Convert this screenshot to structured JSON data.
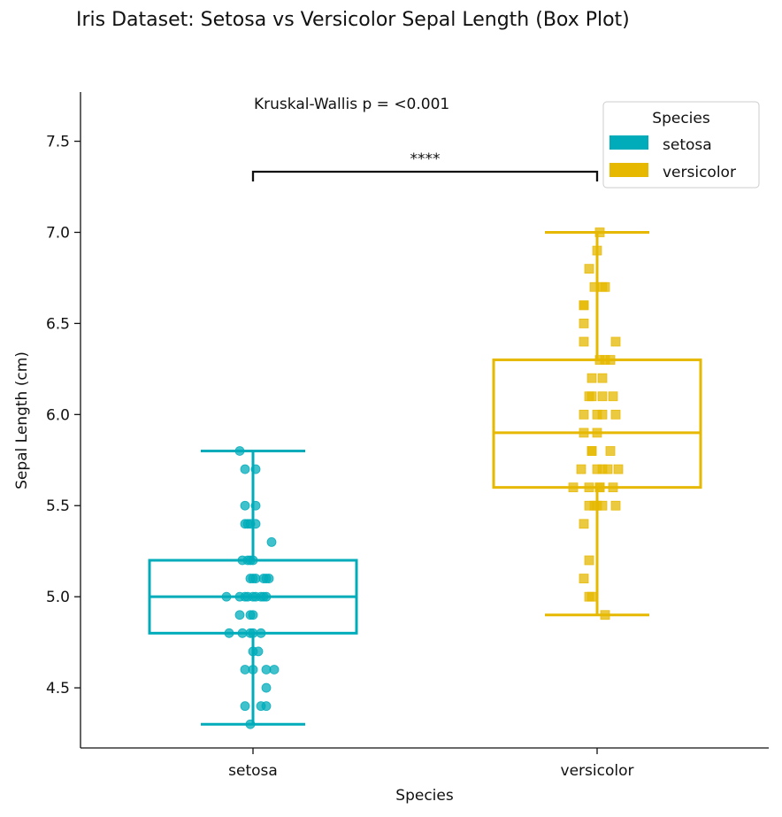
{
  "chart_data": {
    "type": "box",
    "title": "Iris Dataset: Setosa vs Versicolor Sepal Length (Box Plot)",
    "xlabel": "Species",
    "ylabel": "Sepal Length (cm)",
    "ylim": [
      4.17,
      7.77
    ],
    "yticks": [
      "4.5",
      "5.0",
      "5.5",
      "6.0",
      "6.5",
      "7.0",
      "7.5"
    ],
    "categories": [
      "setosa",
      "versicolor"
    ],
    "legend": {
      "title": "Species",
      "placement": "top-right"
    },
    "annotation": "Kruskal-Wallis p = <0.001",
    "significance": "****",
    "grid": false,
    "series": [
      {
        "name": "setosa",
        "color": "#00ACBA",
        "marker": "circle",
        "box": {
          "whislo": 4.3,
          "q1": 4.8,
          "median": 5.0,
          "q3": 5.2,
          "whishi": 5.8
        },
        "points": [
          [
            -0.05,
            5.8
          ],
          [
            -0.03,
            5.7
          ],
          [
            0.01,
            5.7
          ],
          [
            -0.03,
            5.5
          ],
          [
            0.01,
            5.5
          ],
          [
            -0.02,
            5.4
          ],
          [
            -0.01,
            5.4
          ],
          [
            -0.03,
            5.4
          ],
          [
            0.01,
            5.4
          ],
          [
            0.07,
            5.3
          ],
          [
            -0.04,
            5.2
          ],
          [
            -0.01,
            5.2
          ],
          [
            -0.02,
            5.2
          ],
          [
            0.0,
            5.2
          ],
          [
            -0.01,
            5.1
          ],
          [
            0.0,
            5.1
          ],
          [
            0.01,
            5.1
          ],
          [
            0.04,
            5.1
          ],
          [
            0.05,
            5.1
          ],
          [
            0.06,
            5.1
          ],
          [
            -0.1,
            5.0
          ],
          [
            -0.05,
            5.0
          ],
          [
            -0.03,
            5.0
          ],
          [
            -0.02,
            5.0
          ],
          [
            0.0,
            5.0
          ],
          [
            0.01,
            5.0
          ],
          [
            0.03,
            5.0
          ],
          [
            0.04,
            5.0
          ],
          [
            0.05,
            5.0
          ],
          [
            -0.05,
            4.9
          ],
          [
            -0.01,
            4.9
          ],
          [
            0.0,
            4.9
          ],
          [
            -0.09,
            4.8
          ],
          [
            -0.04,
            4.8
          ],
          [
            -0.01,
            4.8
          ],
          [
            0.0,
            4.8
          ],
          [
            0.03,
            4.8
          ],
          [
            0.0,
            4.7
          ],
          [
            0.02,
            4.7
          ],
          [
            -0.03,
            4.6
          ],
          [
            0.0,
            4.6
          ],
          [
            0.05,
            4.6
          ],
          [
            0.08,
            4.6
          ],
          [
            0.05,
            4.5
          ],
          [
            -0.03,
            4.4
          ],
          [
            0.03,
            4.4
          ],
          [
            0.05,
            4.4
          ],
          [
            -0.01,
            4.3
          ]
        ]
      },
      {
        "name": "versicolor",
        "color": "#E6B800",
        "marker": "square",
        "box": {
          "whislo": 4.9,
          "q1": 5.6,
          "median": 5.9,
          "q3": 6.3,
          "whishi": 7.0
        },
        "points": [
          [
            0.01,
            7.0
          ],
          [
            0.0,
            6.9
          ],
          [
            -0.03,
            6.8
          ],
          [
            -0.01,
            6.7
          ],
          [
            0.02,
            6.7
          ],
          [
            0.03,
            6.7
          ],
          [
            -0.05,
            6.6
          ],
          [
            -0.05,
            6.6
          ],
          [
            -0.05,
            6.5
          ],
          [
            -0.05,
            6.4
          ],
          [
            0.07,
            6.4
          ],
          [
            0.01,
            6.3
          ],
          [
            0.03,
            6.3
          ],
          [
            0.05,
            6.3
          ],
          [
            -0.02,
            6.2
          ],
          [
            0.02,
            6.2
          ],
          [
            -0.03,
            6.1
          ],
          [
            -0.02,
            6.1
          ],
          [
            0.02,
            6.1
          ],
          [
            0.06,
            6.1
          ],
          [
            -0.05,
            6.0
          ],
          [
            0.0,
            6.0
          ],
          [
            0.02,
            6.0
          ],
          [
            0.07,
            6.0
          ],
          [
            -0.05,
            5.9
          ],
          [
            0.0,
            5.9
          ],
          [
            -0.02,
            5.8
          ],
          [
            -0.02,
            5.8
          ],
          [
            0.05,
            5.8
          ],
          [
            -0.06,
            5.7
          ],
          [
            0.0,
            5.7
          ],
          [
            0.02,
            5.7
          ],
          [
            0.04,
            5.7
          ],
          [
            0.08,
            5.7
          ],
          [
            -0.09,
            5.6
          ],
          [
            -0.03,
            5.6
          ],
          [
            0.01,
            5.6
          ],
          [
            0.01,
            5.6
          ],
          [
            0.06,
            5.6
          ],
          [
            -0.03,
            5.5
          ],
          [
            -0.01,
            5.5
          ],
          [
            0.0,
            5.5
          ],
          [
            0.02,
            5.5
          ],
          [
            0.07,
            5.5
          ],
          [
            -0.05,
            5.4
          ],
          [
            -0.03,
            5.2
          ],
          [
            -0.05,
            5.1
          ],
          [
            -0.03,
            5.0
          ],
          [
            -0.02,
            5.0
          ],
          [
            0.03,
            4.9
          ]
        ]
      }
    ]
  }
}
